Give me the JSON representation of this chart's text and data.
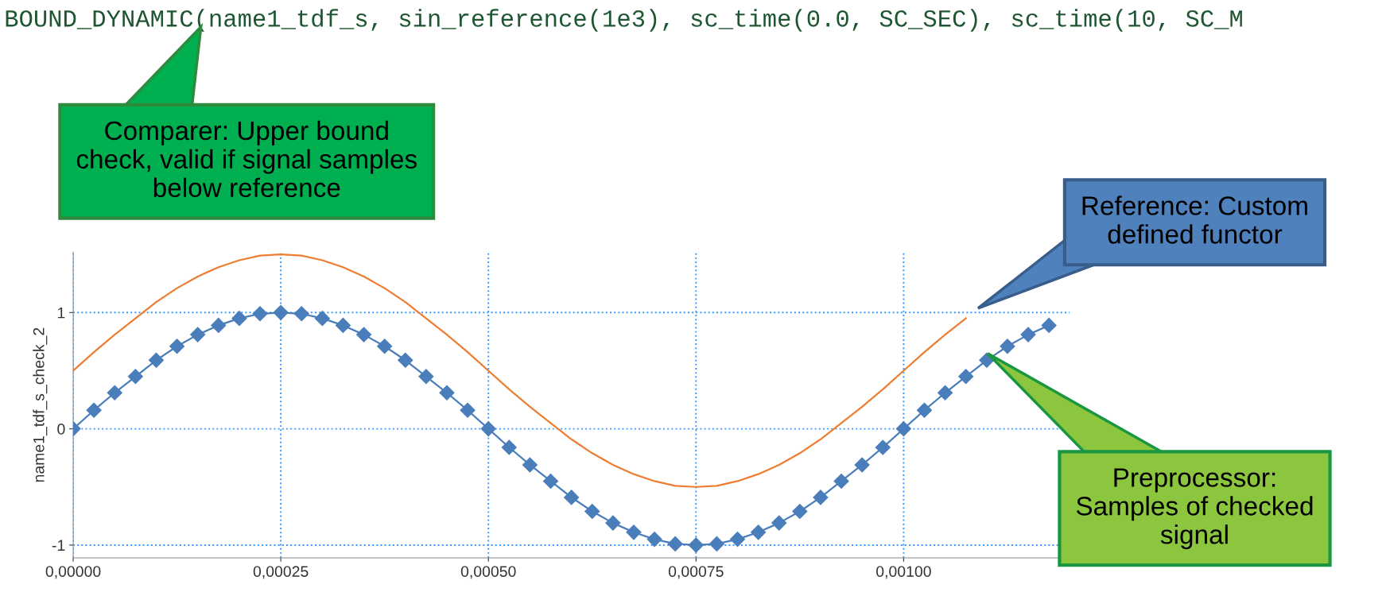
{
  "chart_data": {
    "type": "line",
    "ylabel": "name1_tdf_s_check_2",
    "x": [
      0,
      2.5e-05,
      5e-05,
      7.5e-05,
      0.0001,
      0.000125,
      0.00015,
      0.000175,
      0.0002,
      0.000225,
      0.00025,
      0.000275,
      0.0003,
      0.000325,
      0.00035,
      0.000375,
      0.0004,
      0.000425,
      0.00045,
      0.000475,
      0.0005,
      0.000525,
      0.00055,
      0.000575,
      0.0006,
      0.000625,
      0.00065,
      0.000675,
      0.0007,
      0.000725,
      0.00075,
      0.000775,
      0.0008,
      0.000825,
      0.00085,
      0.000875,
      0.0009,
      0.000925,
      0.00095,
      0.000975,
      0.001,
      0.001025,
      0.00105,
      0.001075,
      0.0011,
      0.001125,
      0.00115,
      0.001175
    ],
    "series": [
      {
        "color": "#ed7d31",
        "marker": "none",
        "values": [
          0.5,
          0.66,
          0.81,
          0.95,
          1.09,
          1.21,
          1.31,
          1.39,
          1.45,
          1.49,
          1.5,
          1.49,
          1.45,
          1.39,
          1.31,
          1.21,
          1.09,
          0.95,
          0.81,
          0.66,
          0.5,
          0.34,
          0.19,
          0.05,
          -0.09,
          -0.21,
          -0.31,
          -0.39,
          -0.45,
          -0.49,
          -0.5,
          -0.49,
          -0.45,
          -0.39,
          -0.31,
          -0.21,
          -0.09,
          0.05,
          0.19,
          0.34,
          0.5,
          0.66,
          0.81,
          0.95,
          null,
          null,
          null,
          null
        ]
      },
      {
        "color": "#4a7ebb",
        "marker": "diamond",
        "values": [
          0,
          0.16,
          0.31,
          0.45,
          0.59,
          0.71,
          0.81,
          0.89,
          0.95,
          0.99,
          1,
          0.99,
          0.95,
          0.89,
          0.81,
          0.71,
          0.59,
          0.45,
          0.31,
          0.16,
          0,
          -0.16,
          -0.31,
          -0.45,
          -0.59,
          -0.71,
          -0.81,
          -0.89,
          -0.95,
          -0.99,
          -1,
          -0.99,
          -0.95,
          -0.89,
          -0.81,
          -0.71,
          -0.59,
          -0.45,
          -0.31,
          -0.16,
          0,
          0.16,
          0.31,
          0.45,
          0.59,
          0.71,
          0.81,
          0.89
        ]
      }
    ],
    "xlim": [
      0,
      0.0012
    ],
    "ylim": [
      -1.11,
      1.52
    ],
    "xticks": [
      {
        "value": 0,
        "label": "0,00000"
      },
      {
        "value": 0.00025,
        "label": "0,00025"
      },
      {
        "value": 0.0005,
        "label": "0,00050"
      },
      {
        "value": 0.00075,
        "label": "0,00075"
      },
      {
        "value": 0.001,
        "label": "0,00100"
      }
    ],
    "yticks": [
      -1,
      0,
      1
    ],
    "grid": true,
    "legend": false,
    "annotations": [
      "BOUND_DYNAMIC(name1_tdf_s, sin_reference(1e3), sc_time(0.0, SC_SEC), sc_time(10, SC_M",
      "Comparer: Upper bound\ncheck, valid if signal samples\nbelow reference",
      "Reference: Custom\ndefined functor",
      "Preprocessor:\nSamples of checked\nsignal"
    ]
  }
}
